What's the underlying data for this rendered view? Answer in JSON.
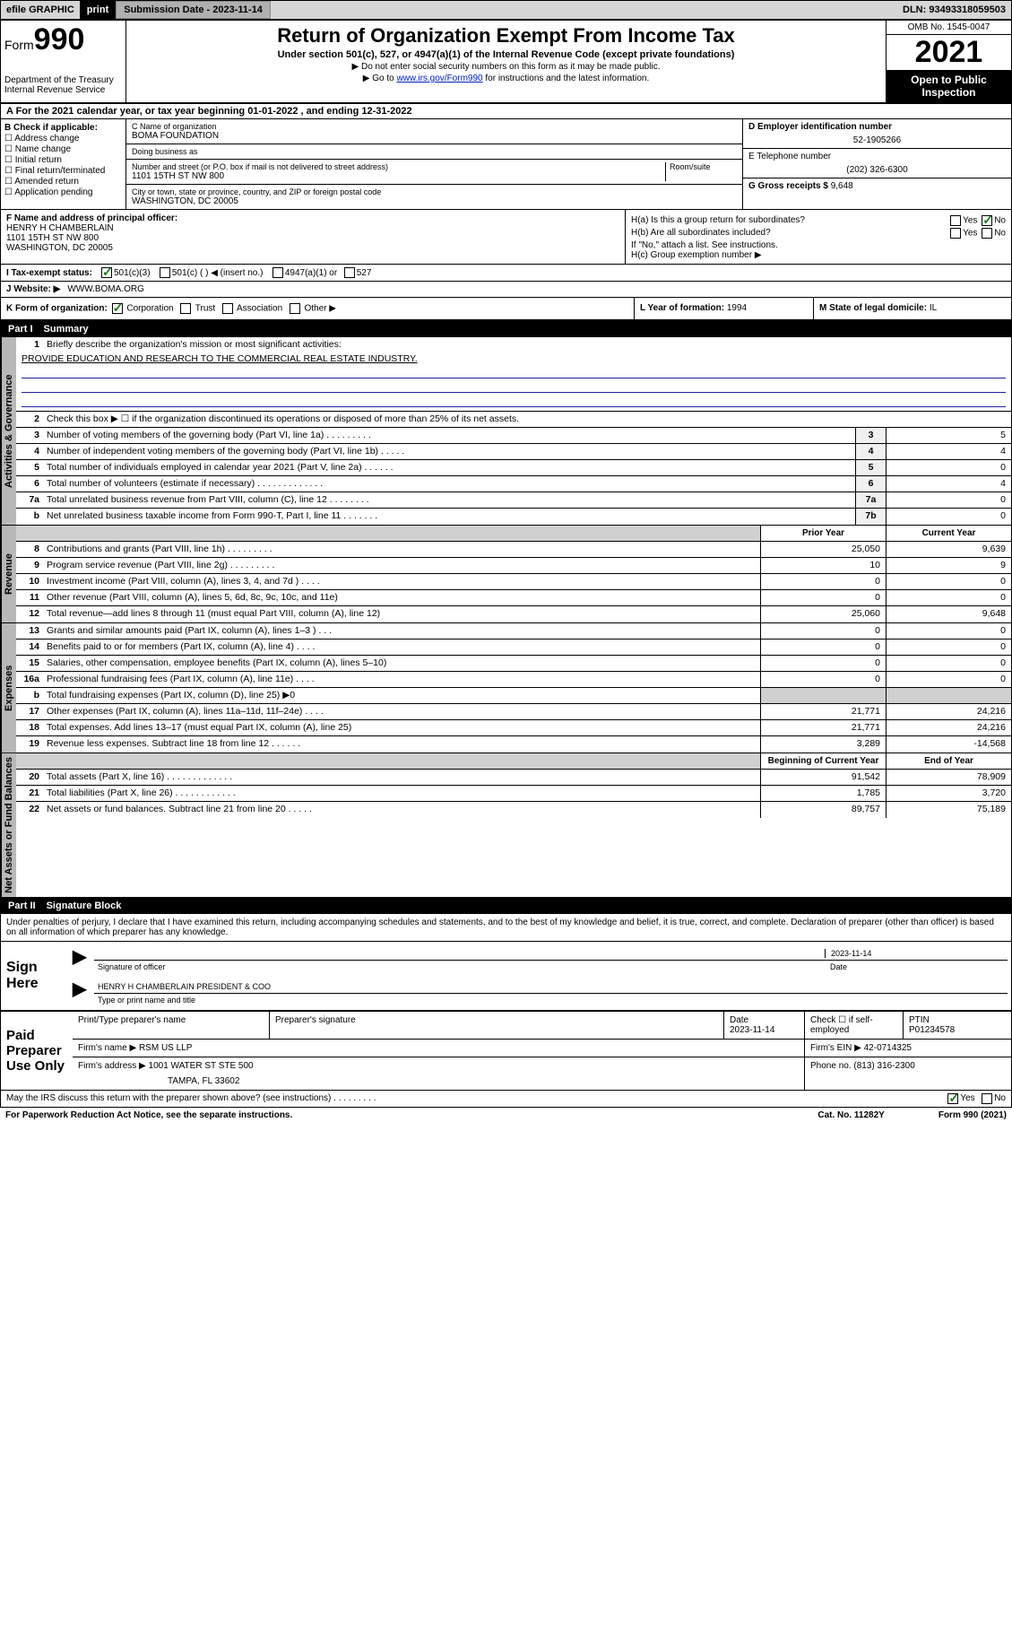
{
  "topbar": {
    "efile_label": "efile GRAPHIC",
    "print_label": "print",
    "subdate_label": "Submission Date - 2023-11-14",
    "dln_label": "DLN: 93493318059503"
  },
  "header": {
    "form_label": "Form",
    "form_num": "990",
    "dept": "Department of the Treasury Internal Revenue Service",
    "title": "Return of Organization Exempt From Income Tax",
    "sub": "Under section 501(c), 527, or 4947(a)(1) of the Internal Revenue Code (except private foundations)",
    "note1": "▶ Do not enter social security numbers on this form as it may be made public.",
    "note2_pre": "▶ Go to ",
    "note2_link": "www.irs.gov/Form990",
    "note2_post": " for instructions and the latest information.",
    "omb": "OMB No. 1545-0047",
    "year": "2021",
    "open_pub": "Open to Public Inspection"
  },
  "row_a": {
    "text": "A For the 2021 calendar year, or tax year beginning 01-01-2022    , and ending 12-31-2022"
  },
  "col_b": {
    "label": "B Check if applicable:",
    "opts": [
      "Address change",
      "Name change",
      "Initial return",
      "Final return/terminated",
      "Amended return",
      "Application pending"
    ]
  },
  "col_c": {
    "name_label": "C Name of organization",
    "name": "BOMA FOUNDATION",
    "dba_label": "Doing business as",
    "dba": "",
    "addr_label": "Number and street (or P.O. box if mail is not delivered to street address)",
    "room_label": "Room/suite",
    "addr": "1101 15TH ST NW 800",
    "city_label": "City or town, state or province, country, and ZIP or foreign postal code",
    "city": "WASHINGTON, DC  20005"
  },
  "col_de": {
    "d_label": "D Employer identification number",
    "d_val": "52-1905266",
    "e_label": "E Telephone number",
    "e_val": "(202) 326-6300",
    "g_label": "G Gross receipts $",
    "g_val": "9,648"
  },
  "row_f": {
    "label": "F Name and address of principal officer:",
    "name": "HENRY H CHAMBERLAIN",
    "addr1": "1101 15TH ST NW 800",
    "addr2": "WASHINGTON, DC  20005"
  },
  "row_h": {
    "ha_label": "H(a)  Is this a group return for subordinates?",
    "ha_yes": "Yes",
    "ha_no": "No",
    "hb_label": "H(b)  Are all subordinates included?",
    "hb_note": "If \"No,\" attach a list. See instructions.",
    "hc_label": "H(c)  Group exemption number ▶"
  },
  "row_i": {
    "label": "I    Tax-exempt status:",
    "opt1": "501(c)(3)",
    "opt2": "501(c) (   ) ◀ (insert no.)",
    "opt3": "4947(a)(1) or",
    "opt4": "527"
  },
  "row_j": {
    "label": "J    Website: ▶",
    "val": "WWW.BOMA.ORG"
  },
  "row_k": {
    "label": "K Form of organization:",
    "opts": [
      "Corporation",
      "Trust",
      "Association",
      "Other ▶"
    ],
    "l_label": "L Year of formation:",
    "l_val": "1994",
    "m_label": "M State of legal domicile:",
    "m_val": "IL"
  },
  "part1": {
    "header": "Part I",
    "title": "Summary",
    "line1_label": "Briefly describe the organization's mission or most significant activities:",
    "line1_text": "PROVIDE EDUCATION AND RESEARCH TO THE COMMERCIAL REAL ESTATE INDUSTRY.",
    "line2": "Check this box ▶ ☐  if the organization discontinued its operations or disposed of more than 25% of its net assets.",
    "lines_gov": [
      {
        "n": "3",
        "t": "Number of voting members of the governing body (Part VI, line 1a)   .    .    .    .    .    .    .    .    .",
        "b": "3",
        "v": "5"
      },
      {
        "n": "4",
        "t": "Number of independent voting members of the governing body (Part VI, line 1b)    .    .    .    .    .",
        "b": "4",
        "v": "4"
      },
      {
        "n": "5",
        "t": "Total number of individuals employed in calendar year 2021 (Part V, line 2a)    .    .    .    .    .    .",
        "b": "5",
        "v": "0"
      },
      {
        "n": "6",
        "t": "Total number of volunteers (estimate if necessary)   .    .    .    .    .    .    .    .    .    .    .    .    .",
        "b": "6",
        "v": "4"
      },
      {
        "n": "7a",
        "t": "Total unrelated business revenue from Part VIII, column (C), line 12   .    .    .    .    .    .    .    .",
        "b": "7a",
        "v": "0"
      },
      {
        "n": "b",
        "t": "Net unrelated business taxable income from Form 990-T, Part I, line 11   .    .    .    .    .    .    .",
        "b": "7b",
        "v": "0"
      }
    ],
    "rev_head1": "Prior Year",
    "rev_head2": "Current Year",
    "lines_rev": [
      {
        "n": "8",
        "t": "Contributions and grants (Part VIII, line 1h)   .    .    .    .    .    .    .    .    .",
        "v1": "25,050",
        "v2": "9,639"
      },
      {
        "n": "9",
        "t": "Program service revenue (Part VIII, line 2g)   .    .    .    .    .    .    .    .    .",
        "v1": "10",
        "v2": "9"
      },
      {
        "n": "10",
        "t": "Investment income (Part VIII, column (A), lines 3, 4, and 7d )   .    .    .    .",
        "v1": "0",
        "v2": "0"
      },
      {
        "n": "11",
        "t": "Other revenue (Part VIII, column (A), lines 5, 6d, 8c, 9c, 10c, and 11e)",
        "v1": "0",
        "v2": "0"
      },
      {
        "n": "12",
        "t": "Total revenue—add lines 8 through 11 (must equal Part VIII, column (A), line 12)",
        "v1": "25,060",
        "v2": "9,648"
      }
    ],
    "lines_exp": [
      {
        "n": "13",
        "t": "Grants and similar amounts paid (Part IX, column (A), lines 1–3 )   .    .    .",
        "v1": "0",
        "v2": "0"
      },
      {
        "n": "14",
        "t": "Benefits paid to or for members (Part IX, column (A), line 4)   .    .    .    .",
        "v1": "0",
        "v2": "0"
      },
      {
        "n": "15",
        "t": "Salaries, other compensation, employee benefits (Part IX, column (A), lines 5–10)",
        "v1": "0",
        "v2": "0"
      },
      {
        "n": "16a",
        "t": "Professional fundraising fees (Part IX, column (A), line 11e)   .    .    .    .",
        "v1": "0",
        "v2": "0"
      },
      {
        "n": "b",
        "t": "Total fundraising expenses (Part IX, column (D), line 25) ▶0",
        "v1": "",
        "v2": "",
        "shaded": true
      },
      {
        "n": "17",
        "t": "Other expenses (Part IX, column (A), lines 11a–11d, 11f–24e)   .    .    .    .",
        "v1": "21,771",
        "v2": "24,216"
      },
      {
        "n": "18",
        "t": "Total expenses. Add lines 13–17 (must equal Part IX, column (A), line 25)",
        "v1": "21,771",
        "v2": "24,216"
      },
      {
        "n": "19",
        "t": "Revenue less expenses. Subtract line 18 from line 12   .    .    .    .    .    .",
        "v1": "3,289",
        "v2": "-14,568"
      }
    ],
    "na_head1": "Beginning of Current Year",
    "na_head2": "End of Year",
    "lines_na": [
      {
        "n": "20",
        "t": "Total assets (Part X, line 16)   .    .    .    .    .    .    .    .    .    .    .    .    .",
        "v1": "91,542",
        "v2": "78,909"
      },
      {
        "n": "21",
        "t": "Total liabilities (Part X, line 26)   .    .    .    .    .    .    .    .    .    .    .    .",
        "v1": "1,785",
        "v2": "3,720"
      },
      {
        "n": "22",
        "t": "Net assets or fund balances. Subtract line 21 from line 20   .    .    .    .    .",
        "v1": "89,757",
        "v2": "75,189"
      }
    ],
    "tab_gov": "Activities & Governance",
    "tab_rev": "Revenue",
    "tab_exp": "Expenses",
    "tab_na": "Net Assets or Fund Balances"
  },
  "part2": {
    "header": "Part II",
    "title": "Signature Block",
    "intro": "Under penalties of perjury, I declare that I have examined this return, including accompanying schedules and statements, and to the best of my knowledge and belief, it is true, correct, and complete. Declaration of preparer (other than officer) is based on all information of which preparer has any knowledge.",
    "sign_here": "Sign Here",
    "sig_officer_label": "Signature of officer",
    "sig_date_label": "Date",
    "sig_date": "2023-11-14",
    "sig_name": "HENRY H CHAMBERLAIN  PRESIDENT & COO",
    "sig_name_label": "Type or print name and title",
    "paid_label": "Paid Preparer Use Only",
    "p_name_label": "Print/Type preparer's name",
    "p_sig_label": "Preparer's signature",
    "p_date_label": "Date",
    "p_date": "2023-11-14",
    "p_check_label": "Check ☐ if self-employed",
    "p_ptin_label": "PTIN",
    "p_ptin": "P01234578",
    "firm_name_label": "Firm's name    ▶",
    "firm_name": "RSM US LLP",
    "firm_ein_label": "Firm's EIN ▶",
    "firm_ein": "42-0714325",
    "firm_addr_label": "Firm's address ▶",
    "firm_addr1": "1001 WATER ST STE 500",
    "firm_addr2": "TAMPA, FL  33602",
    "firm_phone_label": "Phone no.",
    "firm_phone": "(813) 316-2300",
    "may_irs": "May the IRS discuss this return with the preparer shown above? (see instructions)   .    .    .    .    .    .    .    .    .",
    "yes": "Yes",
    "no": "No"
  },
  "footer": {
    "left": "For Paperwork Reduction Act Notice, see the separate instructions.",
    "mid": "Cat. No. 11282Y",
    "right": "Form 990 (2021)"
  }
}
